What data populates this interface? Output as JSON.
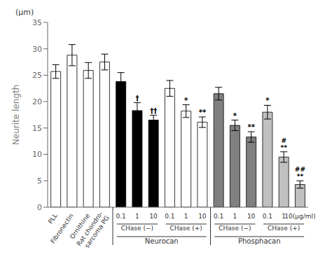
{
  "chart_data": {
    "type": "bar",
    "ylabel": "Neurite length",
    "y_units": "(μm)",
    "categories": [
      "PLL",
      "Fibronectin",
      "Ornithine",
      "Rat chondro-\nsarcoma PG",
      "0.1",
      "1",
      "10",
      "0.1",
      "1",
      "10",
      "0.1",
      "1",
      "10",
      "0.1",
      "1",
      "10(μg/ml)"
    ],
    "values": [
      25.7,
      28.8,
      25.9,
      27.5,
      23.8,
      18.3,
      16.5,
      22.5,
      18.2,
      16.1,
      21.5,
      15.5,
      13.3,
      18.0,
      9.5,
      4.3
    ],
    "errors": [
      1.3,
      2.0,
      1.5,
      1.5,
      1.7,
      1.5,
      0.9,
      1.5,
      1.2,
      1.0,
      1.2,
      1.0,
      1.0,
      1.3,
      1.0,
      0.7
    ],
    "colors": [
      "white",
      "white",
      "white",
      "white",
      "black",
      "black",
      "black",
      "white",
      "white",
      "white",
      "#808080",
      "#808080",
      "#808080",
      "#c0c0c0",
      "#c0c0c0",
      "#c0c0c0"
    ],
    "annotations": [
      null,
      null,
      null,
      null,
      null,
      "†",
      "††",
      null,
      "*",
      "**",
      null,
      "*",
      "**",
      "*",
      "**\n#",
      "**\n##"
    ],
    "subgroups": [
      {
        "label": "CHase (−)",
        "from": 4,
        "to": 6
      },
      {
        "label": "CHase (+)",
        "from": 7,
        "to": 9
      },
      {
        "label": "CHase (−)",
        "from": 10,
        "to": 12
      },
      {
        "label": "CHase (+)",
        "from": 13,
        "to": 15
      }
    ],
    "main_groups": [
      {
        "label": "Neurocan",
        "from": 4,
        "to": 9
      },
      {
        "label": "Phosphacan",
        "from": 10,
        "to": 15
      }
    ],
    "ylim": [
      0,
      35
    ],
    "yticks": [
      0,
      5,
      10,
      15,
      20,
      25,
      30,
      35
    ],
    "grid": false
  }
}
